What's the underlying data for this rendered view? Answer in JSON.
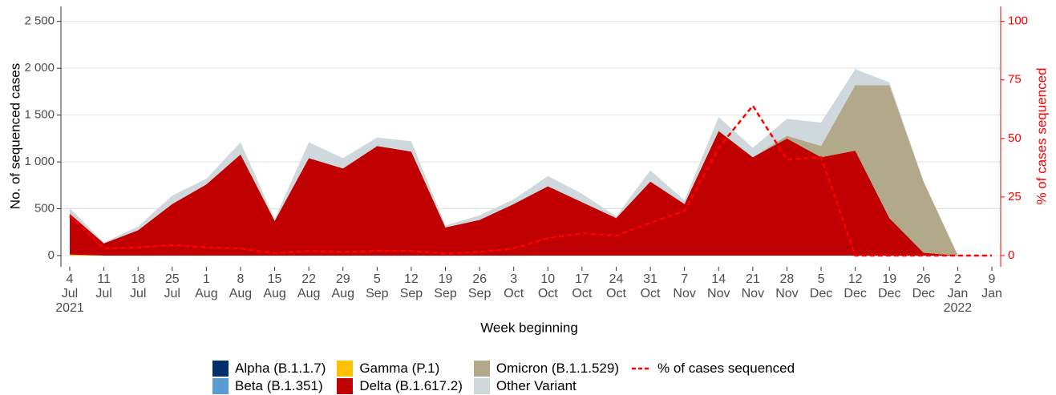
{
  "chart_data": {
    "type": "stacked-area",
    "x_label": "Week beginning",
    "y_label": "No. of sequenced cases",
    "y2_label": "% of cases sequenced",
    "categories": [
      "4\nJul\n2021",
      "11\nJul",
      "18\nJul",
      "25\nJul",
      "1\nAug",
      "8\nAug",
      "15\nAug",
      "22\nAug",
      "29\nAug",
      "5\nSep",
      "12\nSep",
      "19\nSep",
      "26\nSep",
      "3\nOct",
      "10\nOct",
      "17\nOct",
      "24\nOct",
      "31\nOct",
      "7\nNov",
      "14\nNov",
      "21\nNov",
      "28\nNov",
      "5\nDec",
      "12\nDec",
      "19\nDec",
      "26\nDec",
      "2\nJan\n2022",
      "9\nJan"
    ],
    "ylim": [
      -120,
      2660
    ],
    "yticks": [
      0,
      500,
      {
        "value": 1000,
        "label": "1 000"
      },
      {
        "value": 1500,
        "label": "1 500"
      },
      {
        "value": 2000,
        "label": "2 000"
      },
      {
        "value": 2500,
        "label": "2 500"
      }
    ],
    "y2lim": [
      -4.8,
      106.4
    ],
    "y2ticks": [
      0,
      25,
      50,
      75,
      100
    ],
    "grid": true,
    "legend": "bottom",
    "series": [
      {
        "name": "Alpha (B.1.1.7)",
        "color": "#002f6c",
        "values": [
          0,
          0,
          0,
          0,
          0,
          0,
          0,
          0,
          0,
          0,
          0,
          0,
          0,
          0,
          0,
          0,
          0,
          0,
          0,
          0,
          0,
          0,
          0,
          0,
          0,
          0,
          0,
          null
        ]
      },
      {
        "name": "Beta (B.1.351)",
        "color": "#5b9bd5",
        "values": [
          0,
          0,
          0,
          0,
          0,
          0,
          0,
          0,
          0,
          0,
          0,
          0,
          0,
          0,
          0,
          0,
          0,
          0,
          0,
          0,
          0,
          0,
          0,
          0,
          0,
          0,
          0,
          null
        ]
      },
      {
        "name": "Gamma (P.1)",
        "color": "#ffc000",
        "values": [
          10,
          0,
          0,
          0,
          0,
          0,
          0,
          0,
          0,
          0,
          0,
          0,
          0,
          0,
          0,
          0,
          0,
          0,
          0,
          0,
          0,
          0,
          0,
          0,
          0,
          0,
          0,
          null
        ]
      },
      {
        "name": "Delta (B.1.617.2)",
        "color": "#c00000",
        "values": [
          437,
          130,
          270,
          550,
          760,
          1080,
          370,
          1040,
          930,
          1170,
          1110,
          300,
          380,
          550,
          740,
          570,
          400,
          790,
          550,
          1330,
          1050,
          1250,
          1050,
          1120,
          400,
          30,
          0,
          null
        ]
      },
      {
        "name": "Omicron (B.1.1.529)",
        "color": "#b2a98b",
        "values": [
          0,
          0,
          0,
          0,
          0,
          0,
          0,
          0,
          0,
          0,
          0,
          0,
          0,
          0,
          0,
          0,
          0,
          0,
          0,
          0,
          0,
          30,
          120,
          700,
          1420,
          760,
          5,
          null
        ]
      },
      {
        "name": "Other Variant",
        "color": "#cfd8dc",
        "values": [
          60,
          10,
          40,
          90,
          60,
          130,
          20,
          170,
          110,
          90,
          110,
          20,
          50,
          50,
          110,
          90,
          20,
          120,
          40,
          150,
          100,
          180,
          250,
          170,
          30,
          0,
          0,
          null
        ]
      },
      {
        "name": "% of cases sequenced",
        "type": "line",
        "axis": "y2",
        "color": "#ff0000",
        "values": [
          17,
          3,
          3.5,
          4.5,
          3.5,
          3,
          1,
          2,
          1.5,
          2,
          2,
          0.8,
          1.5,
          3,
          7.5,
          9.5,
          8.5,
          14,
          19,
          46,
          64,
          41,
          42,
          0,
          0,
          0,
          0,
          0
        ]
      }
    ]
  }
}
